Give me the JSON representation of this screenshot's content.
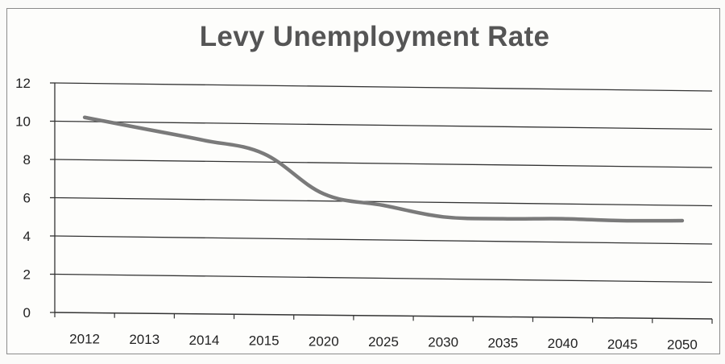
{
  "chart_data": {
    "type": "line",
    "title": "Levy Unemployment Rate",
    "xlabel": "",
    "ylabel": "",
    "categories": [
      "2012",
      "2013",
      "2014",
      "2015",
      "2020",
      "2025",
      "2030",
      "2035",
      "2040",
      "2045",
      "2050"
    ],
    "series": [
      {
        "values": [
          10.2,
          9.6,
          9.0,
          8.3,
          6.2,
          5.6,
          5.0,
          4.9,
          4.9,
          4.8,
          4.8
        ]
      }
    ],
    "ylim": [
      0,
      12
    ],
    "yticks": [
      "0",
      "2",
      "4",
      "6",
      "8",
      "10",
      "12"
    ],
    "grid": true,
    "legend": "none",
    "line_color": "#7a7a7a"
  }
}
